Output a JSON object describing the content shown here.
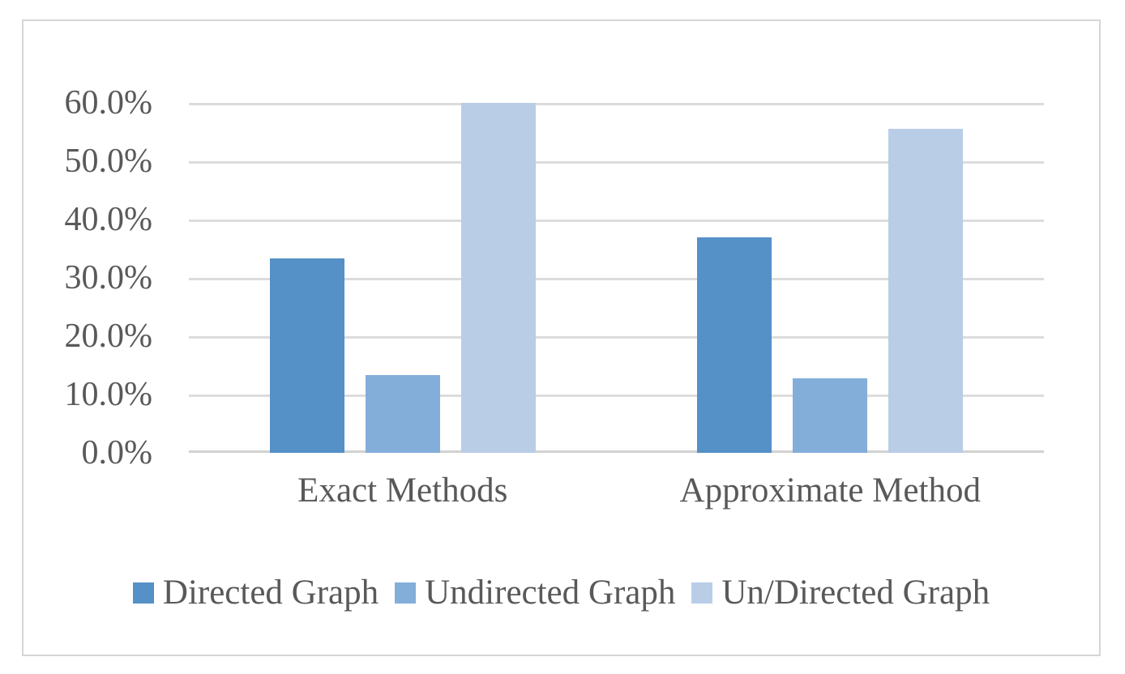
{
  "chart_data": {
    "type": "bar",
    "title": "",
    "categories": [
      "Exact Methods",
      "Approximate Method"
    ],
    "series": [
      {
        "name": "Directed Graph",
        "color": "#5590c7",
        "values": [
          33.3,
          37.0
        ]
      },
      {
        "name": "Undirected Graph",
        "color": "#84aeda",
        "values": [
          13.3,
          12.8
        ]
      },
      {
        "name": "Un/Directed Graph",
        "color": "#b9cde7",
        "values": [
          60.0,
          55.6
        ]
      }
    ],
    "y_axis": {
      "min": 0,
      "max": 60,
      "step": 10,
      "format": "percent",
      "tick_labels": [
        "0.0%",
        "10.0%",
        "20.0%",
        "30.0%",
        "40.0%",
        "50.0%",
        "60.0%"
      ]
    },
    "grid": true,
    "legend_position": "bottom"
  }
}
